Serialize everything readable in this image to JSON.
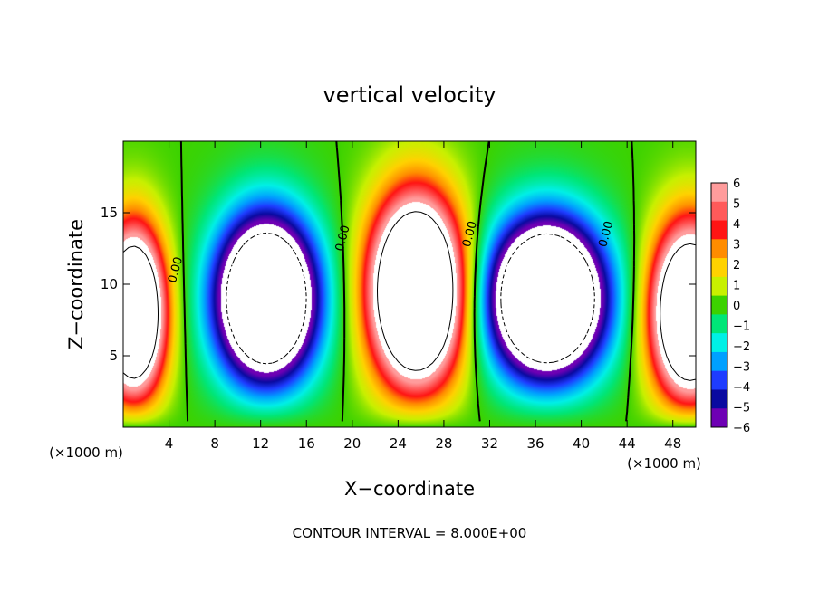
{
  "chart_data": {
    "type": "heatmap",
    "title": "vertical velocity",
    "xlabel": "X−coordinate",
    "ylabel": "Z−coordinate",
    "x_unit_label": "(×1000 m)",
    "y_unit_label": "(×1000 m)",
    "xlim": [
      0,
      50
    ],
    "ylim": [
      0,
      20
    ],
    "x_ticks": [
      4,
      8,
      12,
      16,
      20,
      24,
      28,
      32,
      36,
      40,
      44,
      48
    ],
    "x_tick_labels": [
      "4",
      "8",
      "12",
      "16",
      "20",
      "24",
      "28",
      "32",
      "36",
      "40",
      "44",
      "48"
    ],
    "y_ticks": [
      5,
      10,
      15
    ],
    "y_tick_labels": [
      "5",
      "10",
      "15"
    ],
    "colorbar": {
      "min": -6,
      "max": 6,
      "tick_values": [
        6,
        5,
        4,
        3,
        2,
        1,
        0,
        -1,
        -2,
        -3,
        -4,
        -5,
        -6
      ],
      "tick_labels": [
        "6",
        "5",
        "4",
        "3",
        "2",
        "1",
        "0",
        "−1",
        "−2",
        "−3",
        "−4",
        "−5",
        "−6"
      ],
      "colors": [
        "#ff9c9c",
        "#ff5a5a",
        "#ff1414",
        "#ff8c00",
        "#ffd200",
        "#c8f000",
        "#3cd200",
        "#00e678",
        "#00f0e6",
        "#00a0ff",
        "#1e3cff",
        "#0a0aa0",
        "#6e00b4"
      ]
    },
    "contour_interval_text": "CONTOUR INTERVAL = 8.000E+00",
    "contour_labels": [
      {
        "text": "0.00",
        "x": 4.6,
        "z": 11.0
      },
      {
        "text": "0.00",
        "x": 19.2,
        "z": 13.2
      },
      {
        "text": "0.00",
        "x": 30.3,
        "z": 13.5
      },
      {
        "text": "0.00",
        "x": 42.2,
        "z": 13.5
      }
    ],
    "features": [
      {
        "sign": "positive",
        "x": 0.9,
        "z": 8.0,
        "sx": 2.6,
        "sz": 5.6,
        "amp": 16
      },
      {
        "sign": "negative",
        "x": 12.5,
        "z": 9.0,
        "sx": 4.2,
        "sz": 5.5,
        "amp": 16
      },
      {
        "sign": "positive",
        "x": 25.6,
        "z": 9.5,
        "sx": 3.8,
        "sz": 6.2,
        "amp": 18
      },
      {
        "sign": "negative",
        "x": 37.0,
        "z": 9.0,
        "sx": 4.8,
        "sz": 5.2,
        "amp": 17
      },
      {
        "sign": "positive",
        "x": 49.5,
        "z": 8.0,
        "sx": 3.2,
        "sz": 5.8,
        "amp": 16
      }
    ]
  }
}
